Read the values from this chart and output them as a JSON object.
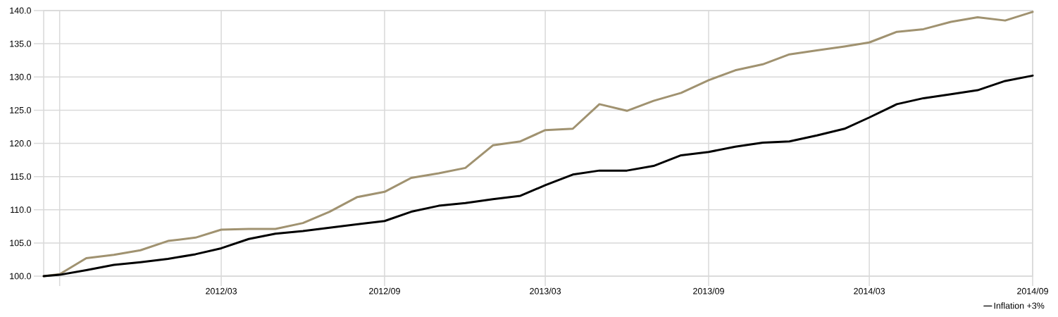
{
  "chart_data": {
    "type": "line",
    "x": [
      "2011-08-14",
      "2011-09",
      "2011-10",
      "2011-11",
      "2011-12",
      "2012-01",
      "2012-02",
      "2012-03",
      "2012-04",
      "2012-05",
      "2012-06",
      "2012-07",
      "2012-08",
      "2012-09",
      "2012-10",
      "2012-11",
      "2012-12",
      "2013-01",
      "2013-02",
      "2013-03",
      "2013-04",
      "2013-05",
      "2013-06",
      "2013-07",
      "2013-08",
      "2013-09",
      "2013-10",
      "2013-11",
      "2013-12",
      "2014-01",
      "2014-02",
      "2014-03",
      "2014-04",
      "2014-05",
      "2014-06",
      "2014-07",
      "2014-08",
      "2014-09"
    ],
    "series": [
      {
        "color": "#a09270",
        "values": [
          100.0,
          100.3,
          102.7,
          103.2,
          103.9,
          105.3,
          105.8,
          107.0,
          107.1,
          107.1,
          108.0,
          109.7,
          111.9,
          112.7,
          114.8,
          115.5,
          116.3,
          119.7,
          120.3,
          122.0,
          122.2,
          125.9,
          124.9,
          126.4,
          127.6,
          129.5,
          131.0,
          131.9,
          133.4,
          134.0,
          134.6,
          135.2,
          136.8,
          137.2,
          138.3,
          139.0,
          138.5,
          139.8
        ]
      },
      {
        "name": "Inflation +3%",
        "color": "#000000",
        "values": [
          100.0,
          100.2,
          100.9,
          101.7,
          102.1,
          102.6,
          103.3,
          104.2,
          105.6,
          106.4,
          106.8,
          107.3,
          107.8,
          108.3,
          109.7,
          110.6,
          111.0,
          111.6,
          112.1,
          113.7,
          115.3,
          115.9,
          115.9,
          116.6,
          118.2,
          118.7,
          119.5,
          120.1,
          120.3,
          121.2,
          122.2,
          123.9,
          125.9,
          126.8,
          127.4,
          128.0,
          129.4,
          130.2
        ]
      }
    ],
    "xlim": [
      "2011-08-14",
      "2014-09"
    ],
    "xticks": [
      {
        "value": "2011-09",
        "label": null
      },
      {
        "value": "2012-03",
        "label": "2012/03"
      },
      {
        "value": "2012-09",
        "label": "2012/09"
      },
      {
        "value": "2013-03",
        "label": "2013/03"
      },
      {
        "value": "2013-09",
        "label": "2013/09"
      },
      {
        "value": "2014-03",
        "label": "2014/03"
      },
      {
        "value": "2014-09",
        "label": "2014/09"
      }
    ],
    "ylim": [
      100,
      140
    ],
    "yticks": [
      {
        "value": 100,
        "label": "100.0"
      },
      {
        "value": 105,
        "label": "105.0"
      },
      {
        "value": 110,
        "label": "110.0"
      },
      {
        "value": 115,
        "label": "115.0"
      },
      {
        "value": 120,
        "label": "120.0"
      },
      {
        "value": 125,
        "label": "125.0"
      },
      {
        "value": 130,
        "label": "130.0"
      },
      {
        "value": 135,
        "label": "135.0"
      },
      {
        "value": 140,
        "label": "140.0"
      }
    ],
    "grid": true,
    "legend": "bottom right"
  }
}
